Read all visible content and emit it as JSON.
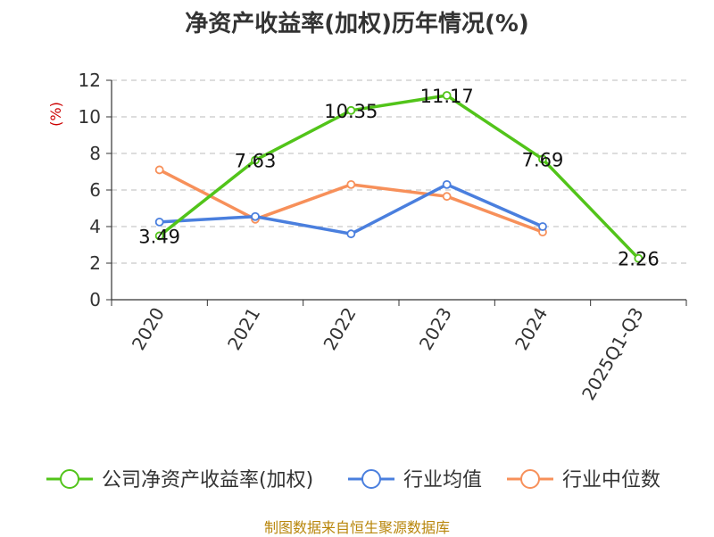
{
  "title": "净资产收益率(加权)历年情况(%)",
  "source": "制图数据来自恒生聚源数据库",
  "colors": {
    "company": "#52c41a",
    "avg": "#4a7fde",
    "median": "#f7905a",
    "ylabel": "#cc0000",
    "source": "#b8860b"
  },
  "chart_data": {
    "type": "line",
    "title": "净资产收益率(加权)历年情况(%)",
    "ylabel": "(%)",
    "xlabel": "",
    "categories": [
      "2020",
      "2021",
      "2022",
      "2023",
      "2024",
      "2025Q1-Q3"
    ],
    "ylim": [
      0,
      12
    ],
    "yticks": [
      0,
      2,
      4,
      6,
      8,
      10,
      12
    ],
    "grid": true,
    "legend": "bottom",
    "series": [
      {
        "name": "公司净资产收益率(加权)",
        "color": "#52c41a",
        "values": [
          3.49,
          7.63,
          10.35,
          11.17,
          7.69,
          2.26
        ],
        "labels": [
          "3.49",
          "7.63",
          "10.35",
          "11.17",
          "7.69",
          "2.26"
        ]
      },
      {
        "name": "行业均值",
        "color": "#4a7fde",
        "values": [
          4.25,
          4.55,
          3.6,
          6.3,
          4.0,
          null
        ]
      },
      {
        "name": "行业中位数",
        "color": "#f7905a",
        "values": [
          7.1,
          4.4,
          6.3,
          5.65,
          3.7,
          null
        ]
      }
    ]
  }
}
